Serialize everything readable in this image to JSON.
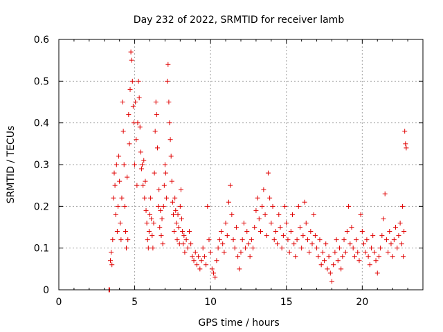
{
  "chart_data": {
    "type": "scatter",
    "title": "Day 232 of 2022, SRMTID for receiver lamb",
    "xlabel": "GPS time / hours",
    "ylabel": "SRMTID / TECUs",
    "xlim": [
      0,
      24
    ],
    "ylim": [
      0,
      0.6
    ],
    "xticks": [
      0,
      5,
      10,
      15,
      20
    ],
    "yticks": [
      0,
      0.1,
      0.2,
      0.3,
      0.4,
      0.5,
      0.6
    ],
    "xtick_labels": [
      "0",
      "5",
      "10",
      "15",
      "20"
    ],
    "ytick_labels": [
      "0",
      "0.1",
      "0.2",
      "0.3",
      "0.4",
      "0.5",
      "0.6"
    ],
    "grid": true,
    "marker": "+",
    "color": "#e00000",
    "series": [
      {
        "name": "SRMTID",
        "points": [
          [
            3.3,
            0.0
          ],
          [
            3.35,
            0.0
          ],
          [
            3.4,
            0.07
          ],
          [
            3.45,
            0.09
          ],
          [
            3.5,
            0.06
          ],
          [
            3.55,
            0.12
          ],
          [
            3.6,
            0.22
          ],
          [
            3.65,
            0.28
          ],
          [
            3.7,
            0.25
          ],
          [
            3.75,
            0.18
          ],
          [
            3.8,
            0.3
          ],
          [
            3.85,
            0.14
          ],
          [
            3.9,
            0.2
          ],
          [
            3.95,
            0.32
          ],
          [
            4.0,
            0.26
          ],
          [
            4.05,
            0.16
          ],
          [
            4.1,
            0.12
          ],
          [
            4.15,
            0.22
          ],
          [
            4.2,
            0.45
          ],
          [
            4.25,
            0.38
          ],
          [
            4.3,
            0.3
          ],
          [
            4.35,
            0.2
          ],
          [
            4.4,
            0.14
          ],
          [
            4.45,
            0.1
          ],
          [
            4.5,
            0.27
          ],
          [
            4.55,
            0.12
          ],
          [
            4.6,
            0.42
          ],
          [
            4.65,
            0.35
          ],
          [
            4.7,
            0.48
          ],
          [
            4.75,
            0.57
          ],
          [
            4.8,
            0.55
          ],
          [
            4.85,
            0.5
          ],
          [
            4.9,
            0.44
          ],
          [
            4.95,
            0.4
          ],
          [
            5.0,
            0.3
          ],
          [
            5.05,
            0.45
          ],
          [
            5.1,
            0.36
          ],
          [
            5.15,
            0.25
          ],
          [
            5.2,
            0.4
          ],
          [
            5.25,
            0.5
          ],
          [
            5.3,
            0.46
          ],
          [
            5.35,
            0.39
          ],
          [
            5.4,
            0.33
          ],
          [
            5.45,
            0.29
          ],
          [
            5.5,
            0.3
          ],
          [
            5.55,
            0.25
          ],
          [
            5.6,
            0.31
          ],
          [
            5.65,
            0.22
          ],
          [
            5.7,
            0.26
          ],
          [
            5.75,
            0.19
          ],
          [
            5.8,
            0.16
          ],
          [
            5.85,
            0.12
          ],
          [
            5.9,
            0.1
          ],
          [
            5.95,
            0.14
          ],
          [
            6.0,
            0.18
          ],
          [
            6.05,
            0.22
          ],
          [
            6.1,
            0.17
          ],
          [
            6.15,
            0.13
          ],
          [
            6.2,
            0.1
          ],
          [
            6.25,
            0.16
          ],
          [
            6.3,
            0.28
          ],
          [
            6.35,
            0.38
          ],
          [
            6.4,
            0.45
          ],
          [
            6.45,
            0.42
          ],
          [
            6.5,
            0.34
          ],
          [
            6.55,
            0.2
          ],
          [
            6.6,
            0.24
          ],
          [
            6.65,
            0.15
          ],
          [
            6.7,
            0.19
          ],
          [
            6.75,
            0.13
          ],
          [
            6.8,
            0.17
          ],
          [
            6.85,
            0.11
          ],
          [
            6.9,
            0.2
          ],
          [
            6.95,
            0.25
          ],
          [
            7.0,
            0.3
          ],
          [
            7.05,
            0.28
          ],
          [
            7.1,
            0.22
          ],
          [
            7.15,
            0.5
          ],
          [
            7.2,
            0.54
          ],
          [
            7.25,
            0.45
          ],
          [
            7.3,
            0.4
          ],
          [
            7.35,
            0.36
          ],
          [
            7.4,
            0.32
          ],
          [
            7.45,
            0.26
          ],
          [
            7.5,
            0.21
          ],
          [
            7.55,
            0.18
          ],
          [
            7.6,
            0.14
          ],
          [
            7.65,
            0.22
          ],
          [
            7.7,
            0.19
          ],
          [
            7.75,
            0.16
          ],
          [
            7.8,
            0.12
          ],
          [
            7.85,
            0.18
          ],
          [
            7.9,
            0.15
          ],
          [
            7.95,
            0.11
          ],
          [
            8.0,
            0.2
          ],
          [
            8.05,
            0.24
          ],
          [
            8.1,
            0.17
          ],
          [
            8.15,
            0.14
          ],
          [
            8.2,
            0.11
          ],
          [
            8.25,
            0.13
          ],
          [
            8.3,
            0.09
          ],
          [
            8.4,
            0.12
          ],
          [
            8.5,
            0.1
          ],
          [
            8.6,
            0.14
          ],
          [
            8.7,
            0.11
          ],
          [
            8.8,
            0.08
          ],
          [
            8.9,
            0.07
          ],
          [
            9.0,
            0.09
          ],
          [
            9.1,
            0.06
          ],
          [
            9.2,
            0.08
          ],
          [
            9.3,
            0.05
          ],
          [
            9.4,
            0.07
          ],
          [
            9.5,
            0.1
          ],
          [
            9.6,
            0.08
          ],
          [
            9.7,
            0.06
          ],
          [
            9.8,
            0.2
          ],
          [
            9.9,
            0.12
          ],
          [
            10.0,
            0.09
          ],
          [
            10.1,
            0.05
          ],
          [
            10.2,
            0.04
          ],
          [
            10.3,
            0.03
          ],
          [
            10.4,
            0.07
          ],
          [
            10.5,
            0.1
          ],
          [
            10.6,
            0.12
          ],
          [
            10.7,
            0.14
          ],
          [
            10.8,
            0.11
          ],
          [
            10.9,
            0.09
          ],
          [
            11.0,
            0.16
          ],
          [
            11.1,
            0.13
          ],
          [
            11.2,
            0.21
          ],
          [
            11.3,
            0.25
          ],
          [
            11.4,
            0.18
          ],
          [
            11.5,
            0.12
          ],
          [
            11.6,
            0.1
          ],
          [
            11.7,
            0.15
          ],
          [
            11.8,
            0.08
          ],
          [
            11.9,
            0.05
          ],
          [
            12.0,
            0.09
          ],
          [
            12.1,
            0.12
          ],
          [
            12.2,
            0.16
          ],
          [
            12.3,
            0.1
          ],
          [
            12.4,
            0.14
          ],
          [
            12.5,
            0.11
          ],
          [
            12.6,
            0.08
          ],
          [
            12.7,
            0.12
          ],
          [
            12.8,
            0.1
          ],
          [
            12.9,
            0.15
          ],
          [
            13.0,
            0.19
          ],
          [
            13.1,
            0.22
          ],
          [
            13.2,
            0.17
          ],
          [
            13.3,
            0.14
          ],
          [
            13.4,
            0.2
          ],
          [
            13.5,
            0.24
          ],
          [
            13.6,
            0.18
          ],
          [
            13.7,
            0.13
          ],
          [
            13.8,
            0.28
          ],
          [
            13.9,
            0.22
          ],
          [
            14.0,
            0.16
          ],
          [
            14.1,
            0.2
          ],
          [
            14.2,
            0.12
          ],
          [
            14.3,
            0.14
          ],
          [
            14.4,
            0.11
          ],
          [
            14.5,
            0.18
          ],
          [
            14.6,
            0.15
          ],
          [
            14.7,
            0.1
          ],
          [
            14.8,
            0.13
          ],
          [
            14.9,
            0.2
          ],
          [
            15.0,
            0.16
          ],
          [
            15.1,
            0.12
          ],
          [
            15.2,
            0.09
          ],
          [
            15.3,
            0.14
          ],
          [
            15.4,
            0.18
          ],
          [
            15.5,
            0.11
          ],
          [
            15.6,
            0.08
          ],
          [
            15.7,
            0.12
          ],
          [
            15.8,
            0.2
          ],
          [
            15.9,
            0.15
          ],
          [
            16.0,
            0.1
          ],
          [
            16.1,
            0.13
          ],
          [
            16.2,
            0.21
          ],
          [
            16.3,
            0.16
          ],
          [
            16.4,
            0.12
          ],
          [
            16.5,
            0.09
          ],
          [
            16.6,
            0.14
          ],
          [
            16.7,
            0.11
          ],
          [
            16.8,
            0.18
          ],
          [
            16.9,
            0.13
          ],
          [
            17.0,
            0.1
          ],
          [
            17.1,
            0.08
          ],
          [
            17.2,
            0.12
          ],
          [
            17.3,
            0.06
          ],
          [
            17.4,
            0.09
          ],
          [
            17.5,
            0.07
          ],
          [
            17.6,
            0.11
          ],
          [
            17.7,
            0.05
          ],
          [
            17.8,
            0.08
          ],
          [
            17.9,
            0.04
          ],
          [
            18.0,
            0.02
          ],
          [
            18.1,
            0.06
          ],
          [
            18.2,
            0.09
          ],
          [
            18.3,
            0.12
          ],
          [
            18.4,
            0.07
          ],
          [
            18.5,
            0.1
          ],
          [
            18.6,
            0.05
          ],
          [
            18.7,
            0.08
          ],
          [
            18.8,
            0.12
          ],
          [
            18.9,
            0.09
          ],
          [
            19.0,
            0.14
          ],
          [
            19.1,
            0.2
          ],
          [
            19.2,
            0.11
          ],
          [
            19.3,
            0.15
          ],
          [
            19.4,
            0.1
          ],
          [
            19.5,
            0.08
          ],
          [
            19.6,
            0.12
          ],
          [
            19.7,
            0.09
          ],
          [
            19.8,
            0.07
          ],
          [
            19.9,
            0.18
          ],
          [
            20.0,
            0.14
          ],
          [
            20.1,
            0.11
          ],
          [
            20.2,
            0.09
          ],
          [
            20.3,
            0.12
          ],
          [
            20.4,
            0.08
          ],
          [
            20.5,
            0.06
          ],
          [
            20.6,
            0.1
          ],
          [
            20.7,
            0.13
          ],
          [
            20.8,
            0.09
          ],
          [
            20.9,
            0.07
          ],
          [
            21.0,
            0.04
          ],
          [
            21.1,
            0.08
          ],
          [
            21.2,
            0.1
          ],
          [
            21.3,
            0.13
          ],
          [
            21.4,
            0.17
          ],
          [
            21.5,
            0.23
          ],
          [
            21.6,
            0.12
          ],
          [
            21.7,
            0.09
          ],
          [
            21.8,
            0.14
          ],
          [
            21.9,
            0.11
          ],
          [
            22.0,
            0.08
          ],
          [
            22.1,
            0.12
          ],
          [
            22.2,
            0.15
          ],
          [
            22.3,
            0.1
          ],
          [
            22.4,
            0.13
          ],
          [
            22.5,
            0.16
          ],
          [
            22.6,
            0.11
          ],
          [
            22.65,
            0.2
          ],
          [
            22.7,
            0.08
          ],
          [
            22.75,
            0.14
          ],
          [
            22.8,
            0.38
          ],
          [
            22.85,
            0.35
          ],
          [
            22.9,
            0.34
          ]
        ]
      }
    ]
  }
}
